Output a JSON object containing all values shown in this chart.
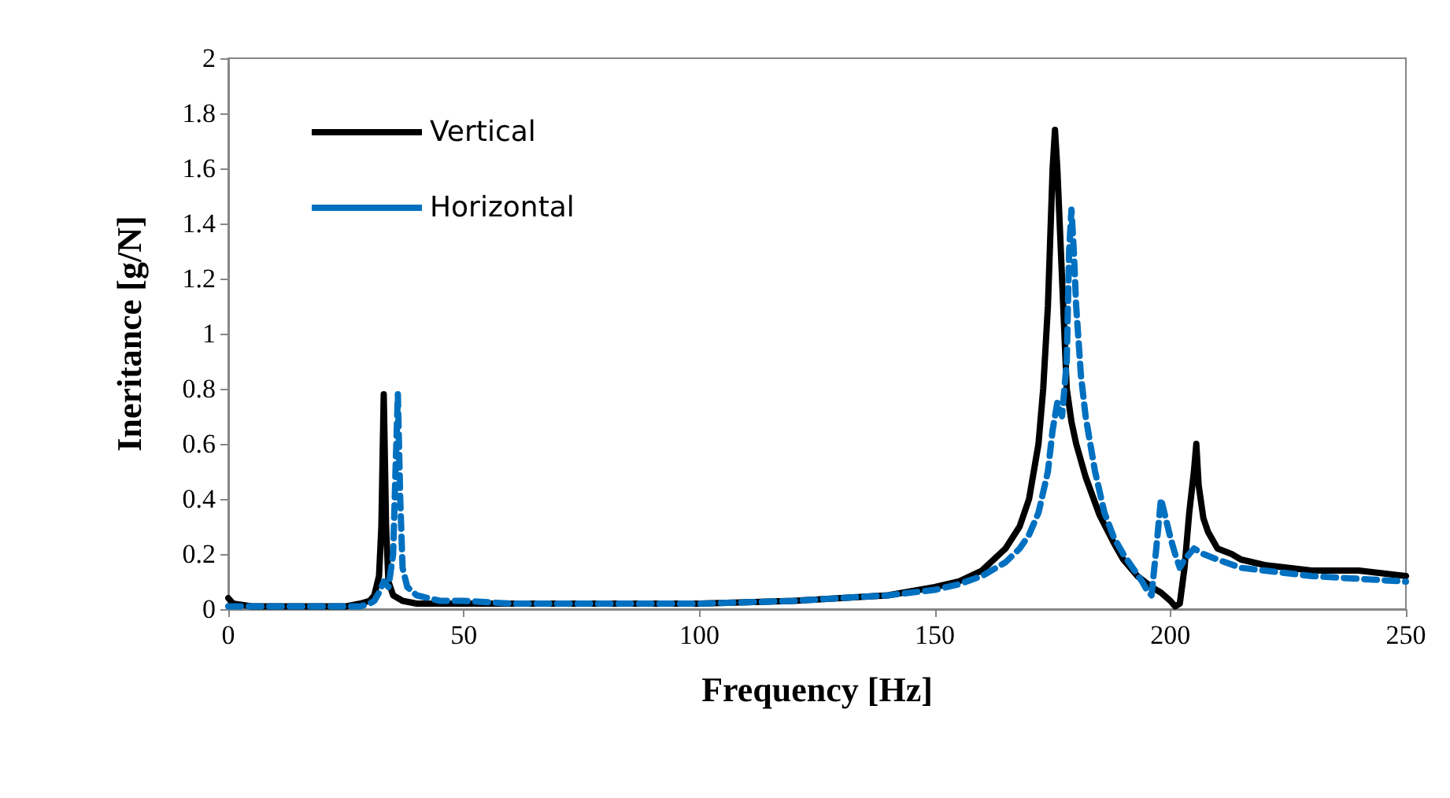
{
  "chart_data": {
    "type": "line",
    "xlabel": "Frequency [Hz]",
    "ylabel": "Ineritance [g/N]",
    "xlim": [
      0,
      250
    ],
    "xticks": [
      0,
      50,
      100,
      150,
      200,
      250
    ],
    "ylim": [
      0,
      2
    ],
    "yticks": [
      0,
      0.2,
      0.4,
      0.6,
      0.8,
      1,
      1.2,
      1.4,
      1.6,
      1.8,
      2
    ],
    "grid": false,
    "legend": "top left",
    "marker": "none",
    "series": [
      {
        "name": "Vertical",
        "color": "#000000",
        "line_style": "solid",
        "x": [
          0,
          1,
          5,
          10,
          20,
          25,
          28,
          30,
          31,
          32,
          32.5,
          33,
          33.5,
          34,
          35,
          37,
          40,
          50,
          60,
          80,
          100,
          120,
          130,
          140,
          150,
          155,
          160,
          165,
          168,
          170,
          172,
          173,
          174,
          175,
          175.5,
          176,
          177,
          178,
          179,
          180,
          182,
          185,
          188,
          190,
          193,
          196,
          198,
          200,
          201,
          202,
          203,
          204,
          205,
          205.5,
          206,
          207,
          208,
          210,
          213,
          215,
          220,
          225,
          230,
          235,
          240,
          245,
          250
        ],
        "values": [
          0.04,
          0.02,
          0.01,
          0.01,
          0.01,
          0.01,
          0.02,
          0.03,
          0.05,
          0.12,
          0.3,
          0.78,
          0.3,
          0.1,
          0.05,
          0.03,
          0.02,
          0.02,
          0.02,
          0.02,
          0.02,
          0.03,
          0.04,
          0.05,
          0.08,
          0.1,
          0.14,
          0.22,
          0.3,
          0.4,
          0.6,
          0.8,
          1.1,
          1.6,
          1.74,
          1.6,
          1.2,
          0.8,
          0.68,
          0.6,
          0.48,
          0.34,
          0.24,
          0.18,
          0.12,
          0.08,
          0.06,
          0.03,
          0.01,
          0.02,
          0.15,
          0.35,
          0.5,
          0.6,
          0.45,
          0.33,
          0.28,
          0.22,
          0.2,
          0.18,
          0.16,
          0.15,
          0.14,
          0.14,
          0.14,
          0.13,
          0.12
        ]
      },
      {
        "name": "Horizontal",
        "color": "#0070c0",
        "line_style": "dashed",
        "x": [
          0,
          5,
          10,
          20,
          25,
          28,
          30,
          31,
          32,
          33,
          34,
          35,
          35.5,
          36,
          36.5,
          37,
          38,
          40,
          45,
          50,
          60,
          80,
          100,
          120,
          130,
          140,
          150,
          155,
          160,
          165,
          168,
          170,
          172,
          174,
          175,
          176,
          177,
          178,
          178.5,
          179,
          179.5,
          180,
          181,
          182,
          184,
          186,
          188,
          190,
          192,
          194,
          195,
          196,
          197,
          198,
          199,
          200,
          201,
          202,
          203,
          205,
          207,
          210,
          215,
          220,
          225,
          230,
          240,
          250
        ],
        "values": [
          0.01,
          0.01,
          0.01,
          0.01,
          0.01,
          0.01,
          0.02,
          0.03,
          0.06,
          0.1,
          0.08,
          0.2,
          0.5,
          0.78,
          0.4,
          0.15,
          0.08,
          0.05,
          0.03,
          0.03,
          0.02,
          0.02,
          0.02,
          0.03,
          0.04,
          0.05,
          0.07,
          0.09,
          0.12,
          0.17,
          0.22,
          0.27,
          0.35,
          0.5,
          0.65,
          0.75,
          0.7,
          0.9,
          1.3,
          1.45,
          1.3,
          1.1,
          0.85,
          0.7,
          0.5,
          0.35,
          0.26,
          0.2,
          0.15,
          0.1,
          0.07,
          0.05,
          0.22,
          0.4,
          0.33,
          0.26,
          0.2,
          0.15,
          0.18,
          0.22,
          0.2,
          0.18,
          0.15,
          0.14,
          0.13,
          0.12,
          0.11,
          0.1
        ]
      }
    ]
  }
}
